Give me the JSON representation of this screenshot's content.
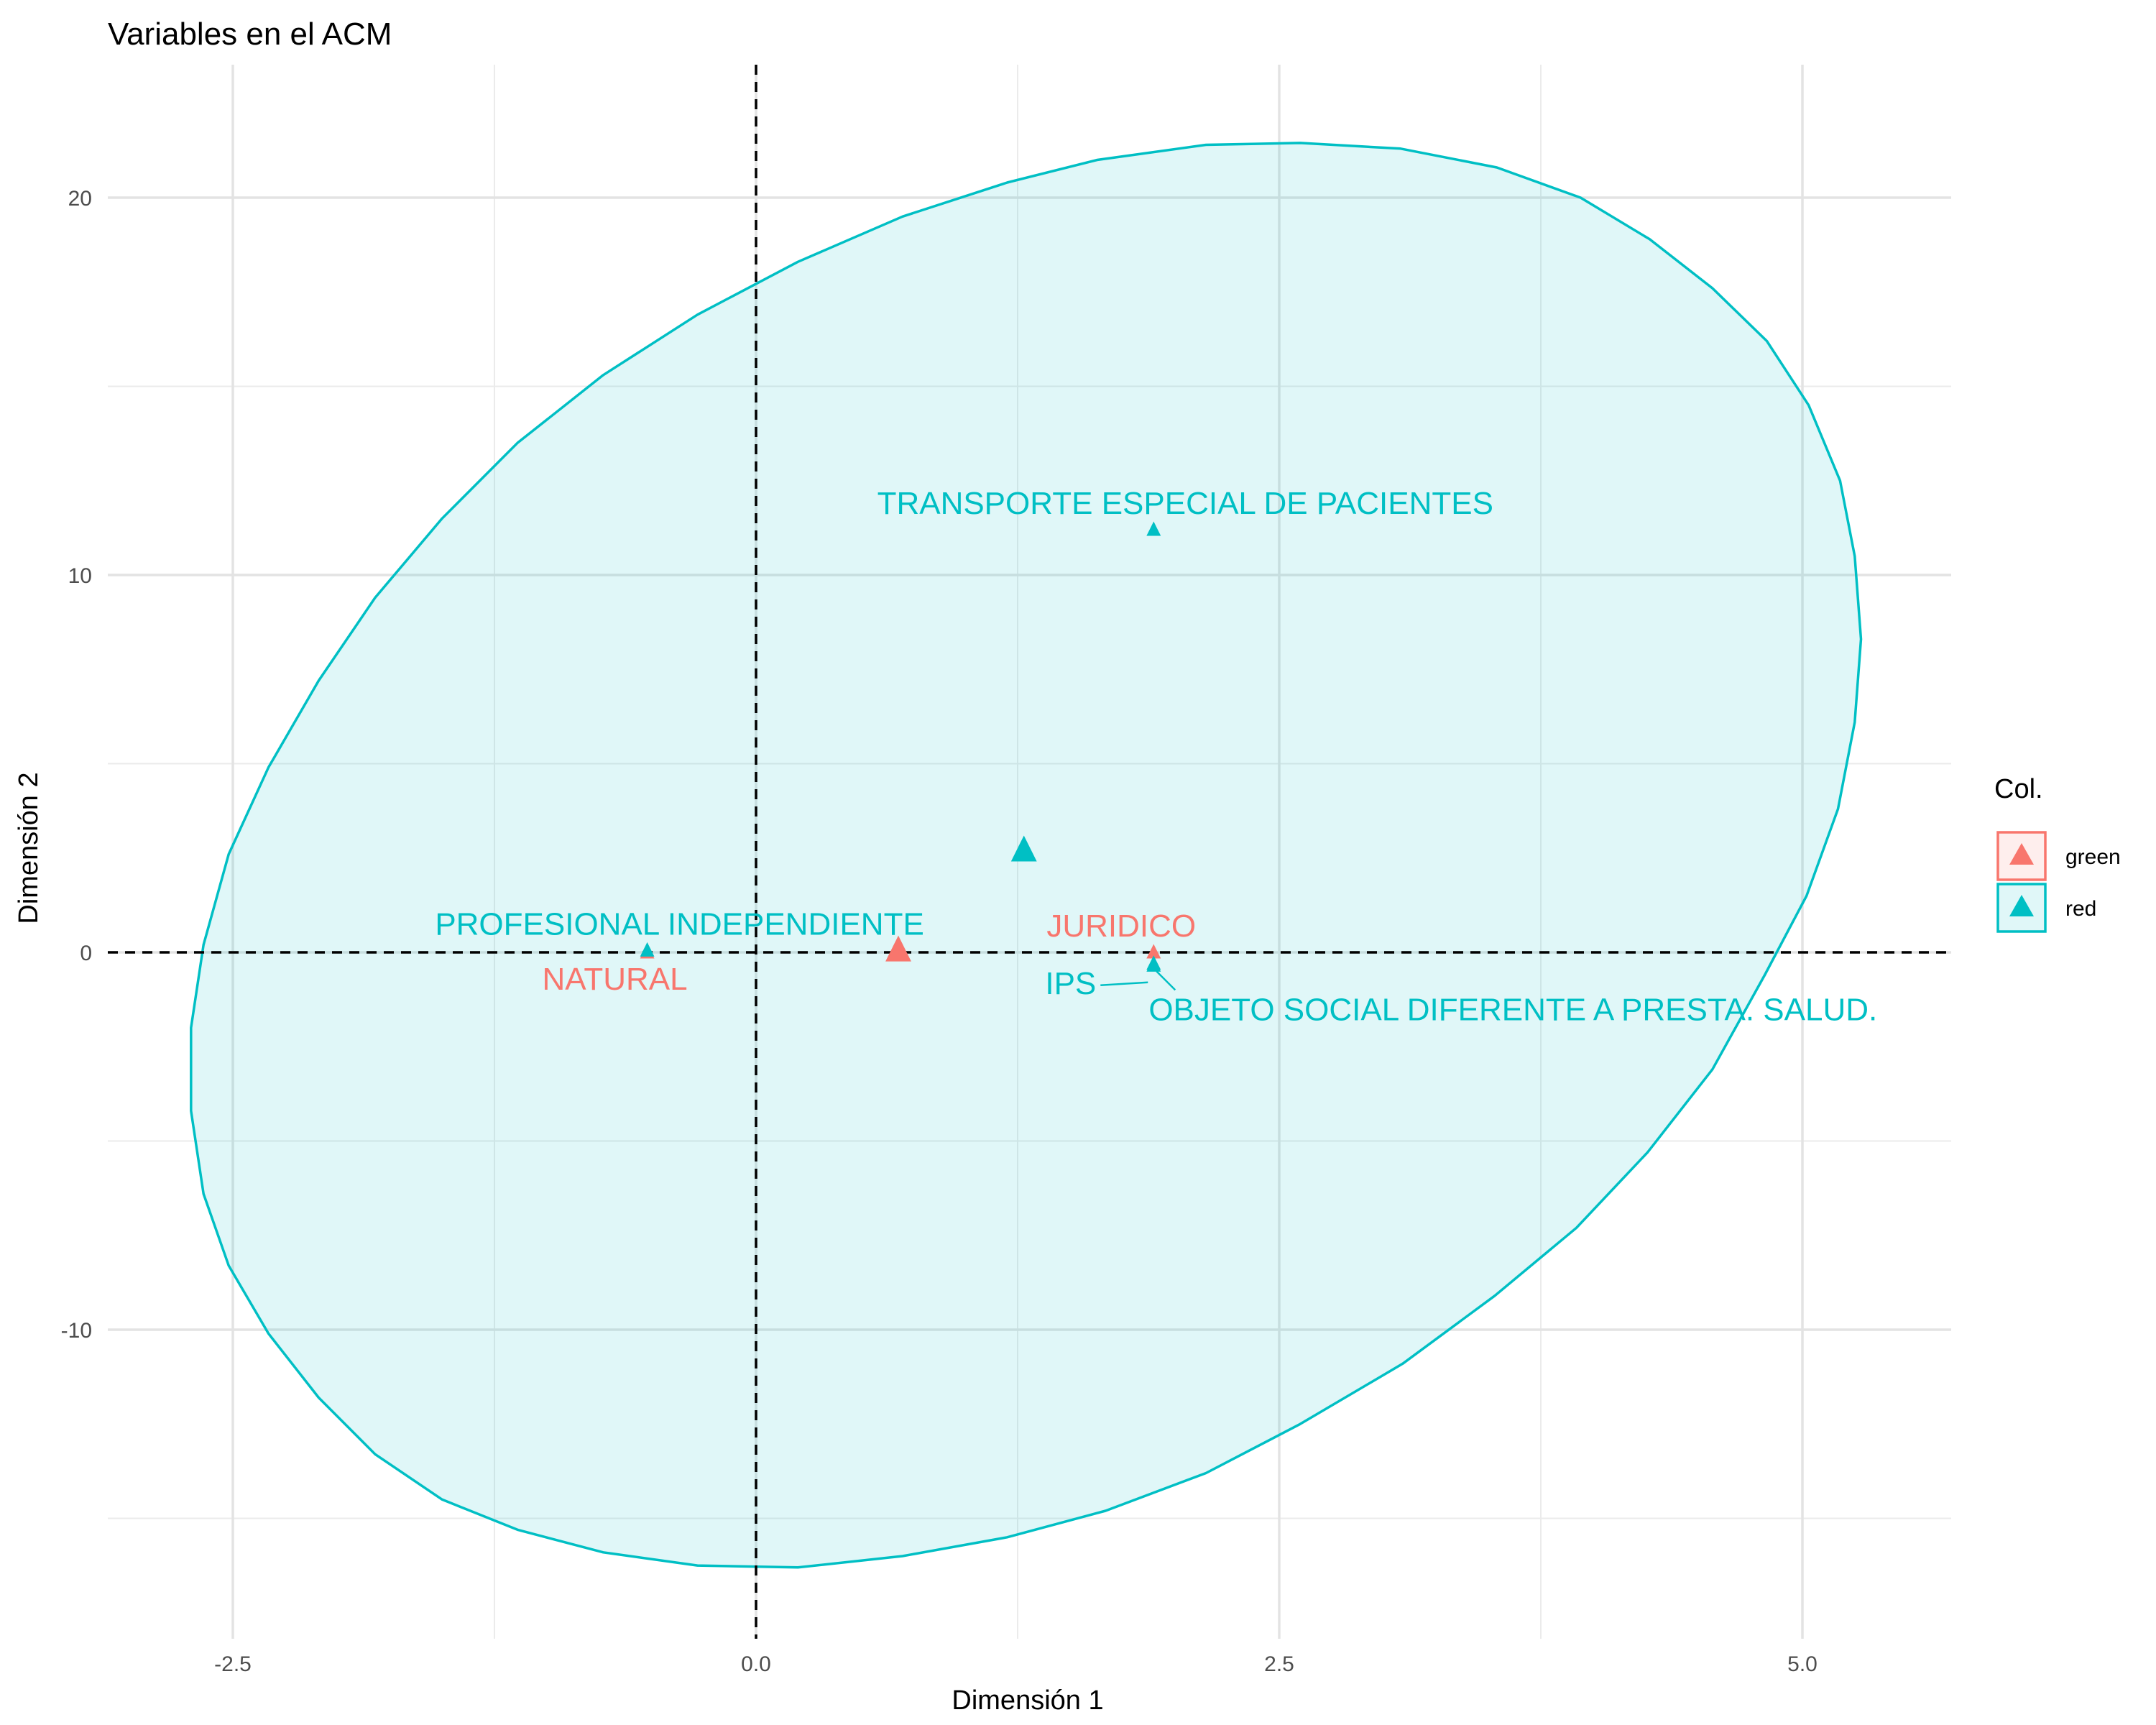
{
  "chart_data": {
    "type": "scatter",
    "title": "Variables en el ACM",
    "xlabel": "Dimensión 1",
    "ylabel": "Dimensión 2",
    "xlim": [
      -3.0,
      5.7
    ],
    "ylim": [
      -18.0,
      23.5
    ],
    "x_ticks": [
      {
        "value": -2.5,
        "label": "-2.5"
      },
      {
        "value": 0.0,
        "label": "0.0"
      },
      {
        "value": 2.5,
        "label": "2.5"
      },
      {
        "value": 5.0,
        "label": "5.0"
      }
    ],
    "y_ticks": [
      {
        "value": -10,
        "label": "-10"
      },
      {
        "value": 0,
        "label": "0"
      },
      {
        "value": 10,
        "label": "10"
      },
      {
        "value": 20,
        "label": "20"
      }
    ],
    "x_minor_grid": [
      -1.25,
      1.25,
      3.75
    ],
    "y_minor_grid": [
      -15,
      -5,
      5,
      15
    ],
    "grid": true,
    "reference_lines": {
      "x": 0,
      "y": 0,
      "style": "dashed"
    },
    "series": [
      {
        "name": "green",
        "color": "#F8766D",
        "points": [
          {
            "x": -0.52,
            "y": 0.0,
            "label": "NATURAL"
          },
          {
            "x": 1.9,
            "y": 0.0,
            "label": "JURIDICO"
          }
        ],
        "centroid": {
          "x": 0.68,
          "y": 0.05
        }
      },
      {
        "name": "red",
        "color": "#00BFC4",
        "points": [
          {
            "x": -0.52,
            "y": 0.05,
            "label": "PROFESIONAL INDEPENDIENTE"
          },
          {
            "x": 1.9,
            "y": 11.2,
            "label": "TRANSPORTE ESPECIAL DE PACIENTES"
          },
          {
            "x": 1.9,
            "y": -0.3,
            "label": "IPS"
          },
          {
            "x": 1.9,
            "y": -0.35,
            "label": "OBJETO SOCIAL DIFERENTE A PRESTA. SALUD."
          }
        ],
        "centroid": {
          "x": 1.28,
          "y": 2.7
        },
        "ellipse": [
          [
            -2.52,
            2.6
          ],
          [
            -2.33,
            4.9
          ],
          [
            -2.09,
            7.2
          ],
          [
            -1.82,
            9.4
          ],
          [
            -1.5,
            11.5
          ],
          [
            -1.14,
            13.5
          ],
          [
            -0.73,
            15.3
          ],
          [
            -0.28,
            16.9
          ],
          [
            0.2,
            18.3
          ],
          [
            0.7,
            19.5
          ],
          [
            1.2,
            20.4
          ],
          [
            1.63,
            21.0
          ],
          [
            2.15,
            21.4
          ],
          [
            2.6,
            21.45
          ],
          [
            3.08,
            21.3
          ],
          [
            3.54,
            20.8
          ],
          [
            3.94,
            20.0
          ],
          [
            4.27,
            18.9
          ],
          [
            4.57,
            17.6
          ],
          [
            4.83,
            16.2
          ],
          [
            5.03,
            14.5
          ],
          [
            5.18,
            12.5
          ],
          [
            5.25,
            10.5
          ],
          [
            5.28,
            8.3
          ],
          [
            5.25,
            6.1
          ],
          [
            5.17,
            3.8
          ],
          [
            5.02,
            1.5
          ],
          [
            4.82,
            -0.6
          ],
          [
            4.57,
            -3.1
          ],
          [
            4.26,
            -5.3
          ],
          [
            3.92,
            -7.3
          ],
          [
            3.53,
            -9.1
          ],
          [
            3.09,
            -10.9
          ],
          [
            2.6,
            -12.5
          ],
          [
            2.15,
            -13.8
          ],
          [
            1.67,
            -14.8
          ],
          [
            1.2,
            -15.5
          ],
          [
            0.7,
            -16.0
          ],
          [
            0.2,
            -16.3
          ],
          [
            -0.28,
            -16.25
          ],
          [
            -0.73,
            -15.9
          ],
          [
            -1.14,
            -15.3
          ],
          [
            -1.5,
            -14.5
          ],
          [
            -1.82,
            -13.3
          ],
          [
            -2.09,
            -11.8
          ],
          [
            -2.33,
            -10.1
          ],
          [
            -2.52,
            -8.3
          ],
          [
            -2.64,
            -6.4
          ],
          [
            -2.7,
            -4.2
          ],
          [
            -2.7,
            -2.0
          ],
          [
            -2.64,
            0.2
          ]
        ]
      }
    ],
    "legend": {
      "title": "Col.",
      "position": "right",
      "entries": [
        {
          "label": "green",
          "color": "#F8766D"
        },
        {
          "label": "red",
          "color": "#00BFC4"
        }
      ]
    }
  }
}
